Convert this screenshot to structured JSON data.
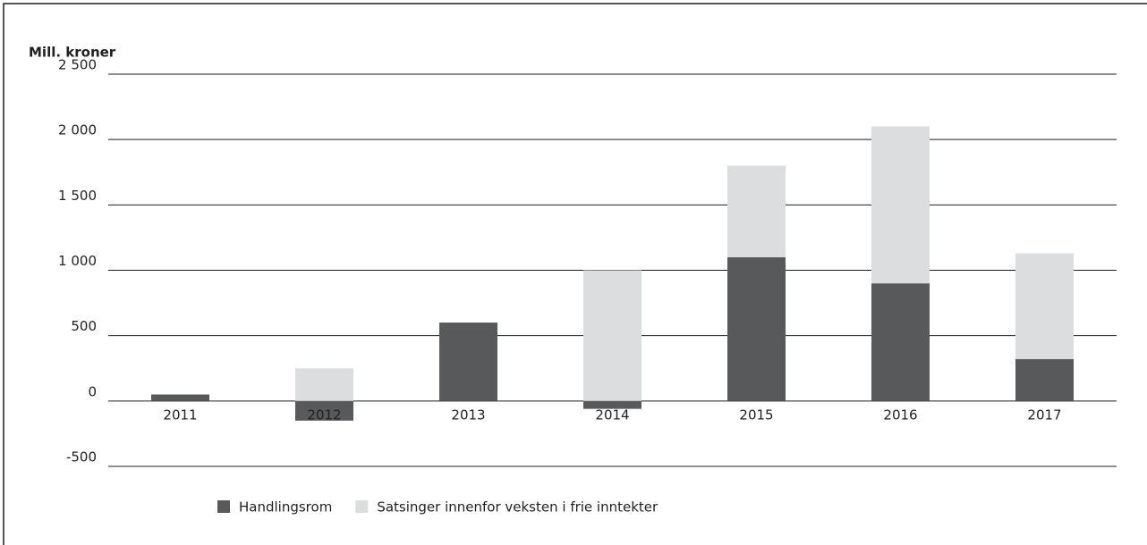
{
  "chart_data": {
    "type": "stacked_bar",
    "y_label": "Mill. kroner",
    "categories": [
      "2011",
      "2012",
      "2013",
      "2014",
      "2015",
      "2016",
      "2017"
    ],
    "series": [
      {
        "name": "Handlingsrom",
        "color": "#58595b",
        "values": [
          50,
          -150,
          600,
          -60,
          1100,
          900,
          320
        ]
      },
      {
        "name": "Satsinger innenfor veksten i frie inntekter",
        "color": "#dcdddf",
        "values": [
          0,
          250,
          0,
          1000,
          700,
          1200,
          810
        ]
      }
    ],
    "ylim": [
      -500,
      2500
    ],
    "yticks": [
      -500,
      0,
      {
        "value": 500,
        "label": "500"
      },
      {
        "value": 1000,
        "label": "1 000"
      },
      {
        "value": 1500,
        "label": "1 500"
      },
      {
        "value": 2000,
        "label": "2 000"
      },
      {
        "value": 2500,
        "label": "2 500"
      }
    ],
    "grid": true,
    "legend": "bottom"
  }
}
